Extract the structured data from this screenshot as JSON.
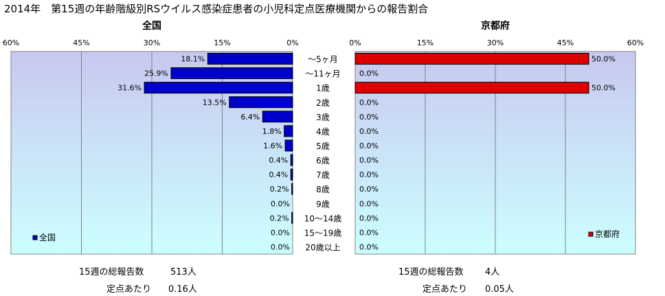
{
  "title": "2014年　第15週の年齢階級別RSウイルス感染症患者の小児科定点医療機関からの報告割合",
  "colors": {
    "left_bar": "#0000cc",
    "right_bar": "#dd0000",
    "plot_bg_top": "#c8c8f0",
    "plot_bg_bottom": "#ccffff"
  },
  "categories": [
    "～5ヶ月",
    "～11ヶ月",
    "1歳",
    "2歳",
    "3歳",
    "4歳",
    "5歳",
    "6歳",
    "7歳",
    "8歳",
    "9歳",
    "10～14歳",
    "15～19歳",
    "20歳以上"
  ],
  "chart_data": [
    {
      "type": "bar",
      "orientation": "horizontal-reversed",
      "title": "全国",
      "x_ticks": [
        "60%",
        "45%",
        "30%",
        "15%",
        "0%"
      ],
      "xlim": [
        0,
        60
      ],
      "legend": "全国",
      "legend_position": "bottom-left",
      "series": [
        {
          "name": "全国",
          "values": [
            18.1,
            25.9,
            31.6,
            13.5,
            6.4,
            1.8,
            1.6,
            0.4,
            0.4,
            0.2,
            0.0,
            0.2,
            0.0,
            0.0
          ],
          "labels": [
            "18.1%",
            "25.9%",
            "31.6%",
            "13.5%",
            "6.4%",
            "1.8%",
            "1.6%",
            "0.4%",
            "0.4%",
            "0.2%",
            "0.0%",
            "0.2%",
            "0.0%",
            "0.0%"
          ]
        }
      ]
    },
    {
      "type": "bar",
      "orientation": "horizontal",
      "title": "京都府",
      "x_ticks": [
        "0%",
        "15%",
        "30%",
        "45%",
        "60%"
      ],
      "xlim": [
        0,
        60
      ],
      "legend": "京都府",
      "legend_position": "bottom-right",
      "series": [
        {
          "name": "京都府",
          "values": [
            50.0,
            0.0,
            50.0,
            0.0,
            0.0,
            0.0,
            0.0,
            0.0,
            0.0,
            0.0,
            0.0,
            0.0,
            0.0,
            0.0
          ],
          "labels": [
            "50.0%",
            "0.0%",
            "50.0%",
            "0.0%",
            "0.0%",
            "0.0%",
            "0.0%",
            "0.0%",
            "0.0%",
            "0.0%",
            "0.0%",
            "0.0%",
            "0.0%",
            "0.0%"
          ]
        }
      ]
    }
  ],
  "footer": {
    "left": {
      "total_label": "15週の総報告数",
      "total_value": "513人",
      "per_label": "定点あたり",
      "per_value": "0.16人"
    },
    "right": {
      "total_label": "15週の総報告数",
      "total_value": "4人",
      "per_label": "定点あたり",
      "per_value": "0.05人"
    }
  }
}
